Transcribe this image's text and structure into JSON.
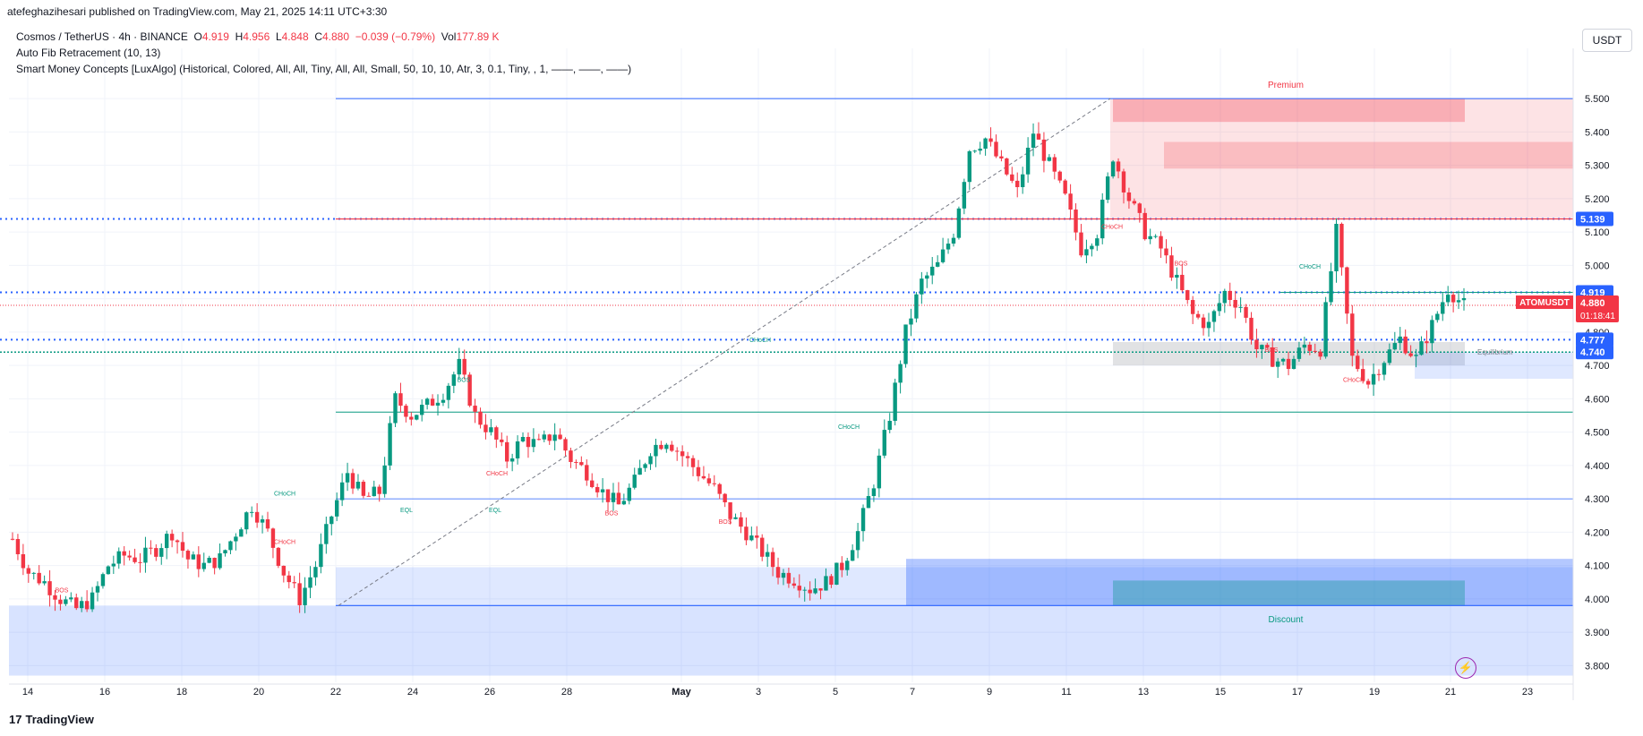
{
  "publisher": "atefeghazihesari published on TradingView.com, May 21, 2025 14:11 UTC+3:30",
  "legend": {
    "symbol": "Cosmos / TetherUS · 4h · BINANCE",
    "o_label": "O",
    "o": "4.919",
    "h_label": "H",
    "h": "4.956",
    "l_label": "L",
    "l": "4.848",
    "c_label": "C",
    "c": "4.880",
    "change": "−0.039 (−0.79%)",
    "vol_label": "Vol",
    "vol": "177.89 K",
    "fib": "Auto Fib Retracement (10, 13)",
    "smc": "Smart Money Concepts [LuxAlgo] (Historical, Colored, All, All, Tiny, All, All, Small, 50, 10, 10, Atr, 3, 0.1, Tiny, , 1, ——, ——, ——)"
  },
  "currency_button": "USDT",
  "footer": {
    "brand": "TradingView",
    "logo": "17"
  },
  "colors": {
    "up": "#089981",
    "down": "#f23645",
    "blue": "#2962ff",
    "grid": "#f0f3fa",
    "premium": "#f23645",
    "discount": "#2962ff"
  },
  "chart_data": {
    "type": "candlestick",
    "symbol": "ATOMUSDT",
    "ylim": [
      3.75,
      5.57
    ],
    "y_ticks": [
      "3.800",
      "3.900",
      "4.000",
      "4.100",
      "4.200",
      "4.300",
      "4.400",
      "4.500",
      "4.600",
      "4.700",
      "4.800",
      "4.900",
      "5.000",
      "5.100",
      "5.200",
      "5.300",
      "5.400",
      "5.500"
    ],
    "x_ticks": [
      "14",
      "16",
      "18",
      "20",
      "22",
      "24",
      "26",
      "28",
      "May",
      "3",
      "5",
      "7",
      "9",
      "11",
      "13",
      "15",
      "17",
      "19",
      "21",
      "23"
    ],
    "price_labels": [
      {
        "text": "5.139",
        "value": 5.139,
        "color": "#2962ff"
      },
      {
        "text": "4.919",
        "value": 4.919,
        "color": "#2962ff"
      },
      {
        "text": "4.880",
        "value": 4.88,
        "color": "#f23645",
        "symbol": "ATOMUSDT",
        "timer": "01:18:41"
      },
      {
        "text": "4.777",
        "value": 4.777,
        "color": "#2962ff"
      },
      {
        "text": "4.740",
        "value": 4.74,
        "color": "#2962ff"
      }
    ],
    "zones": {
      "premium": "Premium",
      "discount": "Discount",
      "equilibrium": "Equilibrium"
    },
    "structure_labels": [
      "BOS",
      "CHoCH",
      "EQL",
      "BOS",
      "CHoCH",
      "BOS",
      "CHoCH",
      "CHoCH",
      "BOS",
      "CHoCH",
      "BOS",
      "CHoCH",
      "BOS",
      "CHoCH",
      "CHoCH",
      "EQL"
    ],
    "path": [
      4.18,
      4.08,
      4.05,
      4.0,
      3.97,
      4.0,
      4.1,
      4.13,
      4.12,
      4.15,
      4.2,
      4.12,
      4.1,
      4.12,
      4.2,
      4.28,
      4.2,
      4.08,
      4.0,
      4.1,
      4.25,
      4.38,
      4.3,
      4.32,
      4.6,
      4.55,
      4.58,
      4.62,
      4.7,
      4.55,
      4.5,
      4.42,
      4.48,
      4.46,
      4.5,
      4.42,
      4.38,
      4.32,
      4.28,
      4.35,
      4.45,
      4.48,
      4.43,
      4.38,
      4.33,
      4.25,
      4.2,
      4.14,
      4.08,
      4.06,
      4.03,
      4.05,
      4.1,
      4.2,
      4.35,
      4.55,
      4.8,
      4.95,
      5.0,
      5.1,
      5.35,
      5.38,
      5.3,
      5.22,
      5.4,
      5.3,
      5.2,
      5.05,
      5.1,
      5.33,
      5.2,
      5.1,
      5.05,
      4.95,
      4.85,
      4.82,
      4.92,
      4.88,
      4.75,
      4.72,
      4.7,
      4.76,
      4.75,
      5.1,
      4.72,
      4.65,
      4.72,
      4.78,
      4.72,
      4.82,
      4.93,
      4.88
    ]
  }
}
